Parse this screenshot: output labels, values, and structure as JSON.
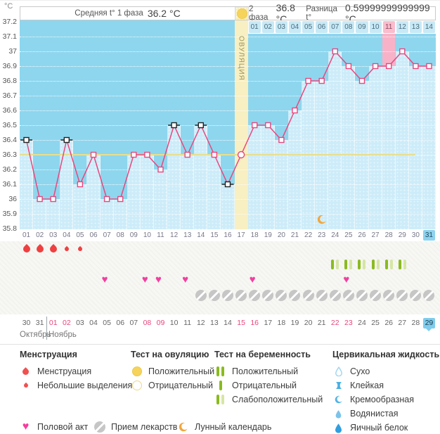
{
  "header": {
    "unit_label": "°C",
    "phase1": {
      "label": "Средняя t° 1 фаза",
      "value": "36.2 °C"
    },
    "phase2": {
      "label": "2 фаза",
      "value": "36.8 °C"
    },
    "diff": {
      "label": "Разница t°",
      "value": "0.59999999999999 °C"
    }
  },
  "chart_data": {
    "type": "line",
    "ylabel": "°C",
    "ylim": [
      35.8,
      37.2
    ],
    "yticks": [
      "37.2",
      "37.1",
      "37",
      "36.9",
      "36.8",
      "36.7",
      "36.6",
      "36.5",
      "36.4",
      "36.3",
      "36.2",
      "36.1",
      "36",
      "35.9",
      "35.8"
    ],
    "grid": "dotted-white",
    "coverline_temp": 36.3,
    "ovulation_day": 17,
    "ovulation_label": "ОВУЛЯЦИЯ",
    "highlight_pink_day": 28,
    "moon_day": 23,
    "today_cycle_day": 31,
    "points": [
      {
        "day": 1,
        "temp": 36.4,
        "excluded": true
      },
      {
        "day": 2,
        "temp": 36.0
      },
      {
        "day": 3,
        "temp": 36.0
      },
      {
        "day": 4,
        "temp": 36.4,
        "excluded": true
      },
      {
        "day": 5,
        "temp": 36.1
      },
      {
        "day": 6,
        "temp": 36.3
      },
      {
        "day": 7,
        "temp": 36.0
      },
      {
        "day": 8,
        "temp": 36.0
      },
      {
        "day": 9,
        "temp": 36.3
      },
      {
        "day": 10,
        "temp": 36.3
      },
      {
        "day": 11,
        "temp": 36.2
      },
      {
        "day": 12,
        "temp": 36.5,
        "excluded": true
      },
      {
        "day": 13,
        "temp": 36.3
      },
      {
        "day": 14,
        "temp": 36.5,
        "excluded": true
      },
      {
        "day": 15,
        "temp": 36.3
      },
      {
        "day": 16,
        "temp": 36.1,
        "excluded": true
      },
      {
        "day": 17,
        "temp": 36.3,
        "marker": "circle"
      },
      {
        "day": 18,
        "temp": 36.5
      },
      {
        "day": 19,
        "temp": 36.5
      },
      {
        "day": 20,
        "temp": 36.4
      },
      {
        "day": 21,
        "temp": 36.6
      },
      {
        "day": 22,
        "temp": 36.8
      },
      {
        "day": 23,
        "temp": 36.8
      },
      {
        "day": 24,
        "temp": 37.0
      },
      {
        "day": 25,
        "temp": 36.9
      },
      {
        "day": 26,
        "temp": 36.8
      },
      {
        "day": 27,
        "temp": 36.9
      },
      {
        "day": 28,
        "temp": 36.9
      },
      {
        "day": 29,
        "temp": 37.0
      },
      {
        "day": 30,
        "temp": 36.9
      },
      {
        "day": 31,
        "temp": 36.9
      }
    ],
    "dpo_labels": [
      "01",
      "02",
      "03",
      "04",
      "05",
      "06",
      "07",
      "08",
      "09",
      "10",
      "11",
      "12",
      "13",
      "14"
    ],
    "dpo_highlight_label": "11",
    "cycle_day_labels": [
      "01",
      "02",
      "03",
      "04",
      "05",
      "06",
      "07",
      "08",
      "09",
      "10",
      "11",
      "12",
      "13",
      "14",
      "15",
      "16",
      "17",
      "18",
      "19",
      "20",
      "21",
      "22",
      "23",
      "24",
      "25",
      "26",
      "27",
      "28",
      "29",
      "30",
      "31"
    ]
  },
  "icons": {
    "menstruation": [
      {
        "day": 1,
        "size": "big"
      },
      {
        "day": 2,
        "size": "big"
      },
      {
        "day": 3,
        "size": "big"
      },
      {
        "day": 4,
        "size": "small"
      },
      {
        "day": 5,
        "size": "small"
      }
    ],
    "pregnancy_tests": [
      {
        "day": 24,
        "result": "weak-positive"
      },
      {
        "day": 25,
        "result": "weak-positive"
      },
      {
        "day": 26,
        "result": "weak-positive"
      },
      {
        "day": 27,
        "result": "weak-positive"
      },
      {
        "day": 28,
        "result": "weak-positive"
      },
      {
        "day": 29,
        "result": "weak-positive"
      }
    ],
    "intercourse_days": [
      7,
      10,
      11,
      13,
      18,
      25
    ],
    "pill_days": [
      14,
      15,
      16,
      17,
      18,
      19,
      20,
      21,
      22,
      23,
      24,
      25,
      26,
      27,
      28,
      29,
      30,
      31
    ]
  },
  "calendar": {
    "dates": [
      {
        "label": "30"
      },
      {
        "label": "31"
      },
      {
        "label": "01",
        "weekend": true
      },
      {
        "label": "02",
        "weekend": true
      },
      {
        "label": "03"
      },
      {
        "label": "04"
      },
      {
        "label": "05"
      },
      {
        "label": "06"
      },
      {
        "label": "07"
      },
      {
        "label": "08",
        "weekend": true
      },
      {
        "label": "09",
        "weekend": true
      },
      {
        "label": "10"
      },
      {
        "label": "11"
      },
      {
        "label": "12"
      },
      {
        "label": "13"
      },
      {
        "label": "14"
      },
      {
        "label": "15",
        "weekend": true
      },
      {
        "label": "16",
        "weekend": true
      },
      {
        "label": "17"
      },
      {
        "label": "18"
      },
      {
        "label": "19"
      },
      {
        "label": "20"
      },
      {
        "label": "21"
      },
      {
        "label": "22",
        "weekend": true
      },
      {
        "label": "23",
        "weekend": true
      },
      {
        "label": "24"
      },
      {
        "label": "25"
      },
      {
        "label": "26"
      },
      {
        "label": "27"
      },
      {
        "label": "28"
      },
      {
        "label": "29",
        "today": true
      }
    ],
    "month_boundary_after_index": 1,
    "months": [
      {
        "label": "Октябрь"
      },
      {
        "label": "Ноябрь"
      }
    ]
  },
  "legend": {
    "columns": [
      {
        "title": "Менструация",
        "items": [
          {
            "icon": "menstruation",
            "label": "Менструация"
          },
          {
            "icon": "spotting",
            "label": "Небольшие выделения"
          }
        ]
      },
      {
        "title": "Тест на овуляцию",
        "items": [
          {
            "icon": "ovulation-positive",
            "label": "Положительный"
          },
          {
            "icon": "ovulation-negative",
            "label": "Отрицательный"
          }
        ]
      },
      {
        "title": "Тест на беременность",
        "items": [
          {
            "icon": "pregnancy-positive",
            "label": "Положительный"
          },
          {
            "icon": "pregnancy-negative",
            "label": "Отрицательный"
          },
          {
            "icon": "pregnancy-weak-positive",
            "label": "Слабоположительный"
          }
        ]
      },
      {
        "title": "Цервикальная жидкость",
        "items": [
          {
            "icon": "fluid-dry",
            "label": "Сухо"
          },
          {
            "icon": "fluid-sticky",
            "label": "Клейкая"
          },
          {
            "icon": "fluid-creamy",
            "label": "Кремообразная"
          },
          {
            "icon": "fluid-watery",
            "label": "Водянистая"
          },
          {
            "icon": "fluid-eggwhite",
            "label": "Яичный белок"
          }
        ]
      }
    ],
    "bottom": [
      {
        "icon": "intercourse",
        "label": "Половой акт"
      },
      {
        "icon": "pills",
        "label": "Прием лекарств"
      },
      {
        "icon": "lunar",
        "label": "Лунный календарь"
      }
    ]
  },
  "colors": {
    "chart_bg": "#8ed6ee",
    "column_fill": "#cdecf9",
    "day_cell": "#c8e9f6",
    "highlight_pink": "#f8b2c8",
    "highlight_cell": "#f9bdce",
    "ovulation_col": "#f8efc2",
    "coverline": "#e9df8c",
    "line": "#e8477e",
    "excluded_marker": "#222222",
    "menstruation": "#ee4040",
    "ovulation_test": "#f6d45c",
    "pregnancy_pos": "#8abb1f",
    "pregnancy_weak": "#d6e6a4",
    "heart": "#f23f9f",
    "pill": "#c6c6c6",
    "moon": "#f2a63a",
    "cervical": "#49b0e4",
    "today_cell": "#7fccec",
    "weekend": "#e8477e"
  }
}
